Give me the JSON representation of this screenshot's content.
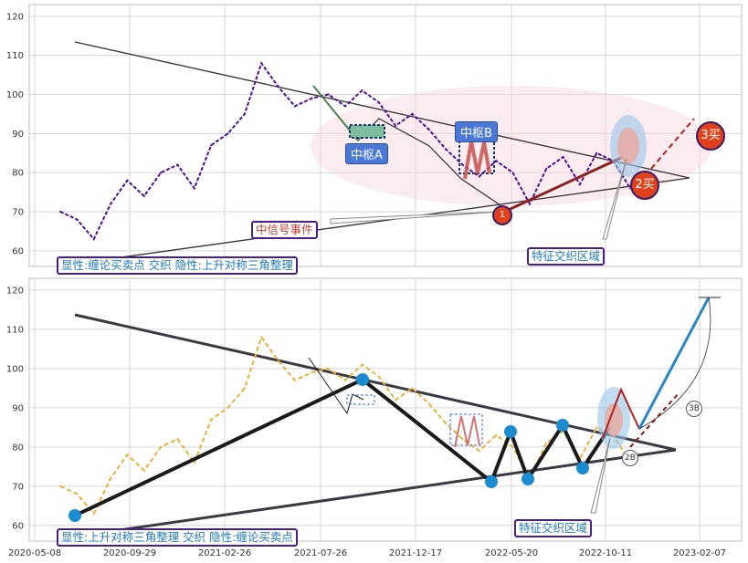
{
  "chart_data": [
    {
      "type": "line",
      "ylim": [
        56,
        123
      ],
      "y_ticks": [
        60,
        70,
        80,
        90,
        100,
        110,
        120
      ],
      "series": [
        {
          "values": [
            70,
            68,
            63,
            72,
            78,
            74,
            80,
            82,
            76,
            87,
            90,
            95,
            108,
            102,
            97,
            99,
            100,
            97,
            101,
            98,
            92,
            95,
            91,
            86,
            82,
            79,
            83,
            80,
            72,
            81,
            84,
            77,
            85,
            83,
            76
          ]
        }
      ],
      "annotations": {
        "label_bottom": "显性:缠论买卖点 交织 隐性:上升对称三角整理",
        "zone_a": "中枢A",
        "zone_b": "中枢B",
        "signal": "中信号事件",
        "feature_zone": "特征交织区域",
        "buy1": "1",
        "buy2": "2买",
        "buy3": "3买"
      }
    },
    {
      "type": "line",
      "ylim": [
        56,
        123
      ],
      "y_ticks": [
        60,
        70,
        80,
        90,
        100,
        110,
        120
      ],
      "x_ticks": [
        "2020-05-08",
        "2020-09-29",
        "2021-02-26",
        "2021-07-26",
        "2021-12-17",
        "2022-05-20",
        "2022-10-11",
        "2023-02-07"
      ],
      "series": [
        {
          "values": [
            70,
            68,
            63,
            72,
            78,
            74,
            80,
            82,
            76,
            87,
            90,
            95,
            108,
            102,
            97,
            99,
            100,
            97,
            101,
            98,
            92,
            95,
            91,
            86,
            82,
            79,
            83,
            80,
            72,
            81,
            84,
            77,
            85,
            83,
            76
          ]
        }
      ],
      "annotations": {
        "label_bottom": "显性:上升对称三角整理 交织 隐性:缠论买卖点",
        "feature_zone": "特征交织区域",
        "mark_2b": "2B",
        "mark_3b": "3B"
      }
    }
  ],
  "colors": {
    "series_top": "#4b0f8f",
    "series_bottom": "#e8b23a",
    "accent_blue": "#1a8ccf",
    "tag_blue": "#4a78d6",
    "buy_red": "#e0401a"
  }
}
